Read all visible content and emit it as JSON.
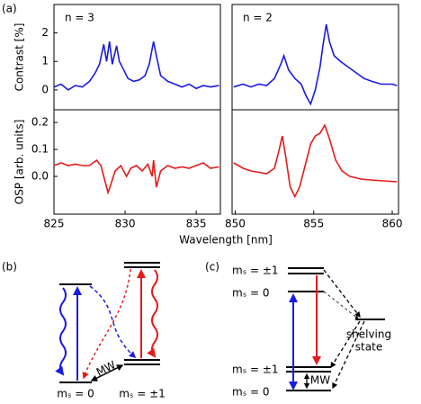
{
  "chart_data": [
    {
      "type": "line",
      "annotation": "n = 3",
      "ylabel": "Contrast [%]",
      "x": [
        825.0,
        825.5,
        826.0,
        826.5,
        827.0,
        827.5,
        827.9,
        828.2,
        828.5,
        828.7,
        828.9,
        829.1,
        829.4,
        829.6,
        829.9,
        830.2,
        830.6,
        831.0,
        831.4,
        831.7,
        832.0,
        832.2,
        832.5,
        833.0,
        833.5,
        834.0,
        834.5,
        835.0,
        835.5,
        836.0,
        836.6
      ],
      "series": [
        {
          "color": "#1a1ae6",
          "values": [
            0.1,
            0.2,
            0.0,
            0.15,
            0.1,
            0.3,
            0.6,
            0.9,
            1.6,
            1.0,
            1.7,
            0.9,
            1.55,
            1.0,
            0.7,
            0.4,
            0.3,
            0.35,
            0.5,
            0.9,
            1.7,
            1.2,
            0.5,
            0.3,
            0.2,
            0.1,
            0.2,
            0.05,
            0.15,
            0.1,
            0.15
          ]
        }
      ],
      "xlim": [
        825,
        836.7
      ],
      "ylim": [
        -0.7,
        3.0
      ],
      "yticks": [
        0,
        1,
        2
      ]
    },
    {
      "type": "line",
      "annotation": "n = 2",
      "x": [
        849.9,
        850.5,
        851.0,
        851.5,
        852.0,
        852.5,
        852.9,
        853.1,
        853.4,
        853.8,
        854.2,
        854.5,
        854.8,
        855.1,
        855.4,
        855.6,
        855.8,
        856.0,
        856.3,
        856.7,
        857.2,
        857.7,
        858.2,
        858.7,
        859.3,
        860.0,
        860.3
      ],
      "series": [
        {
          "color": "#1a1ae6",
          "values": [
            0.1,
            0.2,
            0.1,
            0.2,
            0.15,
            0.4,
            0.9,
            1.2,
            0.7,
            0.4,
            0.2,
            -0.2,
            -0.5,
            0.0,
            0.8,
            1.6,
            2.3,
            1.7,
            1.2,
            1.0,
            0.8,
            0.6,
            0.4,
            0.3,
            0.2,
            0.2,
            0.15
          ]
        }
      ],
      "xlim": [
        849.8,
        860.4
      ],
      "ylim": [
        -0.7,
        3.0
      ]
    },
    {
      "type": "line",
      "ylabel": "OSP [arb. units]",
      "xlabel": "Wavelength [nm]",
      "x": [
        825.0,
        825.5,
        826.0,
        826.5,
        827.0,
        827.5,
        828.0,
        828.3,
        828.6,
        828.8,
        829.0,
        829.3,
        829.7,
        830.1,
        830.4,
        830.8,
        831.2,
        831.6,
        831.9,
        832.0,
        832.2,
        832.5,
        833.0,
        833.5,
        834.0,
        834.5,
        835.0,
        835.5,
        836.0,
        836.6
      ],
      "series": [
        {
          "color": "#e61a1a",
          "values": [
            0.04,
            0.05,
            0.04,
            0.045,
            0.04,
            0.04,
            0.06,
            0.04,
            -0.02,
            -0.06,
            -0.03,
            0.02,
            0.04,
            0.0,
            0.03,
            0.04,
            0.02,
            0.045,
            0.0,
            0.06,
            -0.04,
            0.02,
            0.04,
            0.03,
            0.035,
            0.03,
            0.04,
            0.05,
            0.03,
            0.035
          ]
        }
      ],
      "xlim": [
        825,
        836.7
      ],
      "ylim": [
        -0.14,
        0.247
      ],
      "xticks": [
        825,
        830,
        835
      ],
      "yticks": [
        {
          "value": 0,
          "label": "0.0"
        },
        {
          "value": 0.1,
          "label": "0.1"
        },
        {
          "value": 0.2,
          "label": "0.2"
        }
      ]
    },
    {
      "type": "line",
      "x": [
        849.9,
        850.5,
        851.0,
        851.5,
        852.0,
        852.5,
        852.8,
        853.0,
        853.2,
        853.5,
        853.8,
        854.1,
        854.5,
        854.8,
        855.1,
        855.4,
        855.7,
        856.0,
        856.4,
        856.8,
        857.3,
        858.0,
        859.0,
        860.3
      ],
      "series": [
        {
          "color": "#e61a1a",
          "values": [
            0.05,
            0.03,
            0.02,
            0.015,
            0.01,
            0.03,
            0.1,
            0.15,
            0.08,
            -0.04,
            -0.075,
            -0.04,
            0.05,
            0.12,
            0.15,
            0.16,
            0.19,
            0.14,
            0.06,
            0.02,
            0.0,
            -0.01,
            -0.015,
            -0.02
          ]
        }
      ],
      "xlim": [
        849.8,
        860.4
      ],
      "ylim": [
        -0.14,
        0.247
      ],
      "xticks": [
        850,
        855,
        860
      ]
    }
  ],
  "panel_a": "(a)",
  "diagram_b": {
    "label": "(b)",
    "levels": [
      "mₛ = 0",
      "mₛ = ±1"
    ],
    "mw": "MW"
  },
  "diagram_c": {
    "label": "(c)",
    "levels": [
      "mₛ = ±1",
      "mₛ = 0",
      "mₛ = ±1",
      "mₛ = 0"
    ],
    "mw": "MW",
    "shelving": [
      "shelving",
      "state"
    ]
  }
}
